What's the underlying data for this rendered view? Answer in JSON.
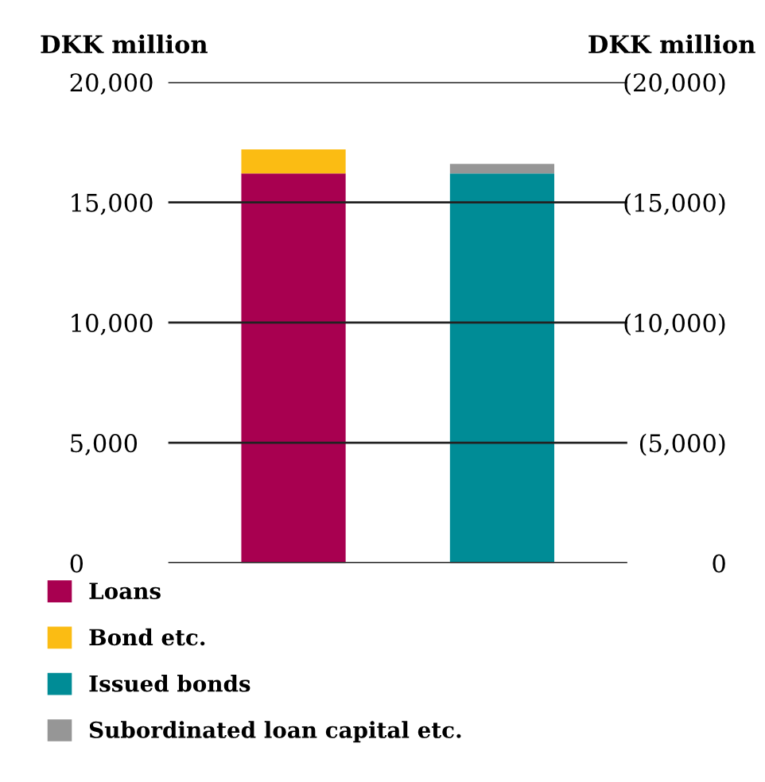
{
  "chart_data": {
    "type": "bar",
    "stacked": true,
    "ylabel": "DKK million",
    "y2label": "DKK million",
    "categories": [
      null,
      null
    ],
    "series": [
      {
        "name": "Loans",
        "color": "#a80050",
        "values": [
          16200,
          null
        ]
      },
      {
        "name": "Bond etc.",
        "color": "#fbbc13",
        "values": [
          1000,
          null
        ]
      },
      {
        "name": "Issued bonds",
        "color": "#008c96",
        "values": [
          null,
          16200
        ]
      },
      {
        "name": "Subordinated loan capital etc.",
        "color": "#969696",
        "values": [
          null,
          400
        ]
      }
    ],
    "ylim": [
      0,
      20000
    ],
    "yticks": [
      {
        "value": 0,
        "label": "0"
      },
      {
        "value": 5000,
        "label": "5,000"
      },
      {
        "value": 10000,
        "label": "10,000"
      },
      {
        "value": 15000,
        "label": "15,000"
      },
      {
        "value": 20000,
        "label": "20,000"
      }
    ],
    "y2lim": [
      0,
      20000
    ],
    "y2ticks": [
      {
        "value": 0,
        "label": "0"
      },
      {
        "value": 5000,
        "label": "(5,000)"
      },
      {
        "value": 10000,
        "label": "(10,000)"
      },
      {
        "value": 15000,
        "label": "(15,000)"
      },
      {
        "value": 20000,
        "label": "(20,000)"
      }
    ],
    "grid": "y",
    "legend": "bottom"
  }
}
